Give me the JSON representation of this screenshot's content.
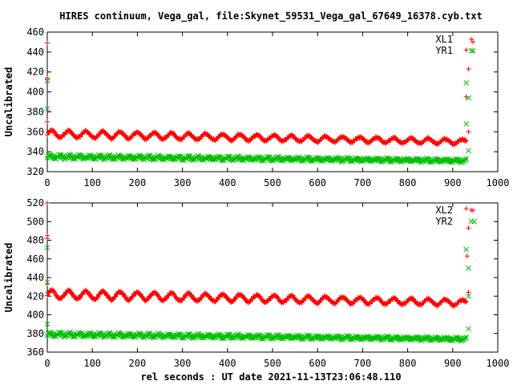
{
  "title": "HIRES continuum, Vega_gal, file:Skynet_59531_Vega_gal_67649_16378.cyb.txt",
  "xlabel_shared": "rel seconds : UT date 2021-11-13T23:06:48.110",
  "colors": {
    "red": "#ff0000",
    "green": "#00c000",
    "axis": "#000000"
  },
  "chart_data": [
    {
      "type": "scatter",
      "ylabel": "Uncalibrated",
      "xlim": [
        0,
        1000
      ],
      "ylim": [
        320,
        460
      ],
      "xticks": [
        "0",
        "100",
        "200",
        "300",
        "400",
        "500",
        "600",
        "700",
        "800",
        "900",
        "1000"
      ],
      "yticks": [
        "320",
        "340",
        "360",
        "380",
        "400",
        "420",
        "440",
        "460"
      ],
      "legend_placement": "top-right",
      "grid": false,
      "series": [
        {
          "name": "XL1",
          "marker": "plus",
          "color": "#ff0000",
          "band": {
            "x_start": 0,
            "x_end": 930,
            "base_start": 358,
            "base_end": 350,
            "amplitude": 3.5,
            "period": 38,
            "thickness": 2.2
          },
          "outliers": [
            [
              0,
              449
            ],
            [
              0,
              414
            ],
            [
              0,
              412
            ],
            [
              0,
              370
            ],
            [
              930,
              395
            ],
            [
              935,
              423
            ],
            [
              935,
              360
            ],
            [
              945,
              450
            ],
            [
              930,
              442
            ]
          ]
        },
        {
          "name": "YR1",
          "marker": "cross",
          "color": "#00c000",
          "band": {
            "x_start": 0,
            "x_end": 930,
            "base_start": 335,
            "base_end": 331,
            "amplitude": 1.6,
            "period": 22,
            "thickness": 2.4
          },
          "outliers": [
            [
              0,
              411
            ],
            [
              0,
              383
            ],
            [
              930,
              409
            ],
            [
              930,
              368
            ],
            [
              935,
              394
            ],
            [
              935,
              341
            ],
            [
              945,
              441
            ]
          ]
        }
      ]
    },
    {
      "type": "scatter",
      "ylabel": "Uncalibrated",
      "xlim": [
        0,
        1000
      ],
      "ylim": [
        360,
        520
      ],
      "xticks": [
        "0",
        "100",
        "200",
        "300",
        "400",
        "500",
        "600",
        "700",
        "800",
        "900",
        "1000"
      ],
      "yticks": [
        "360",
        "380",
        "400",
        "420",
        "440",
        "460",
        "480",
        "500",
        "520"
      ],
      "legend_placement": "top-right",
      "grid": false,
      "series": [
        {
          "name": "XL2",
          "marker": "plus",
          "color": "#ff0000",
          "band": {
            "x_start": 0,
            "x_end": 930,
            "base_start": 422,
            "base_end": 413,
            "amplitude": 4.5,
            "period": 38,
            "thickness": 2.4
          },
          "outliers": [
            [
              0,
              520
            ],
            [
              0,
              485
            ],
            [
              0,
              482
            ],
            [
              0,
              433
            ],
            [
              930,
              514
            ],
            [
              935,
              493
            ],
            [
              932,
              463
            ],
            [
              935,
              424
            ],
            [
              945,
              512
            ]
          ]
        },
        {
          "name": "YR2",
          "marker": "cross",
          "color": "#00c000",
          "band": {
            "x_start": 0,
            "x_end": 930,
            "base_start": 379,
            "base_end": 374,
            "amplitude": 1.7,
            "period": 22,
            "thickness": 2.4
          },
          "outliers": [
            [
              0,
              472
            ],
            [
              0,
              435
            ],
            [
              0,
              390
            ],
            [
              930,
              470
            ],
            [
              935,
              450
            ],
            [
              935,
              420
            ],
            [
              935,
              385
            ],
            [
              948,
              500
            ]
          ]
        }
      ]
    }
  ]
}
